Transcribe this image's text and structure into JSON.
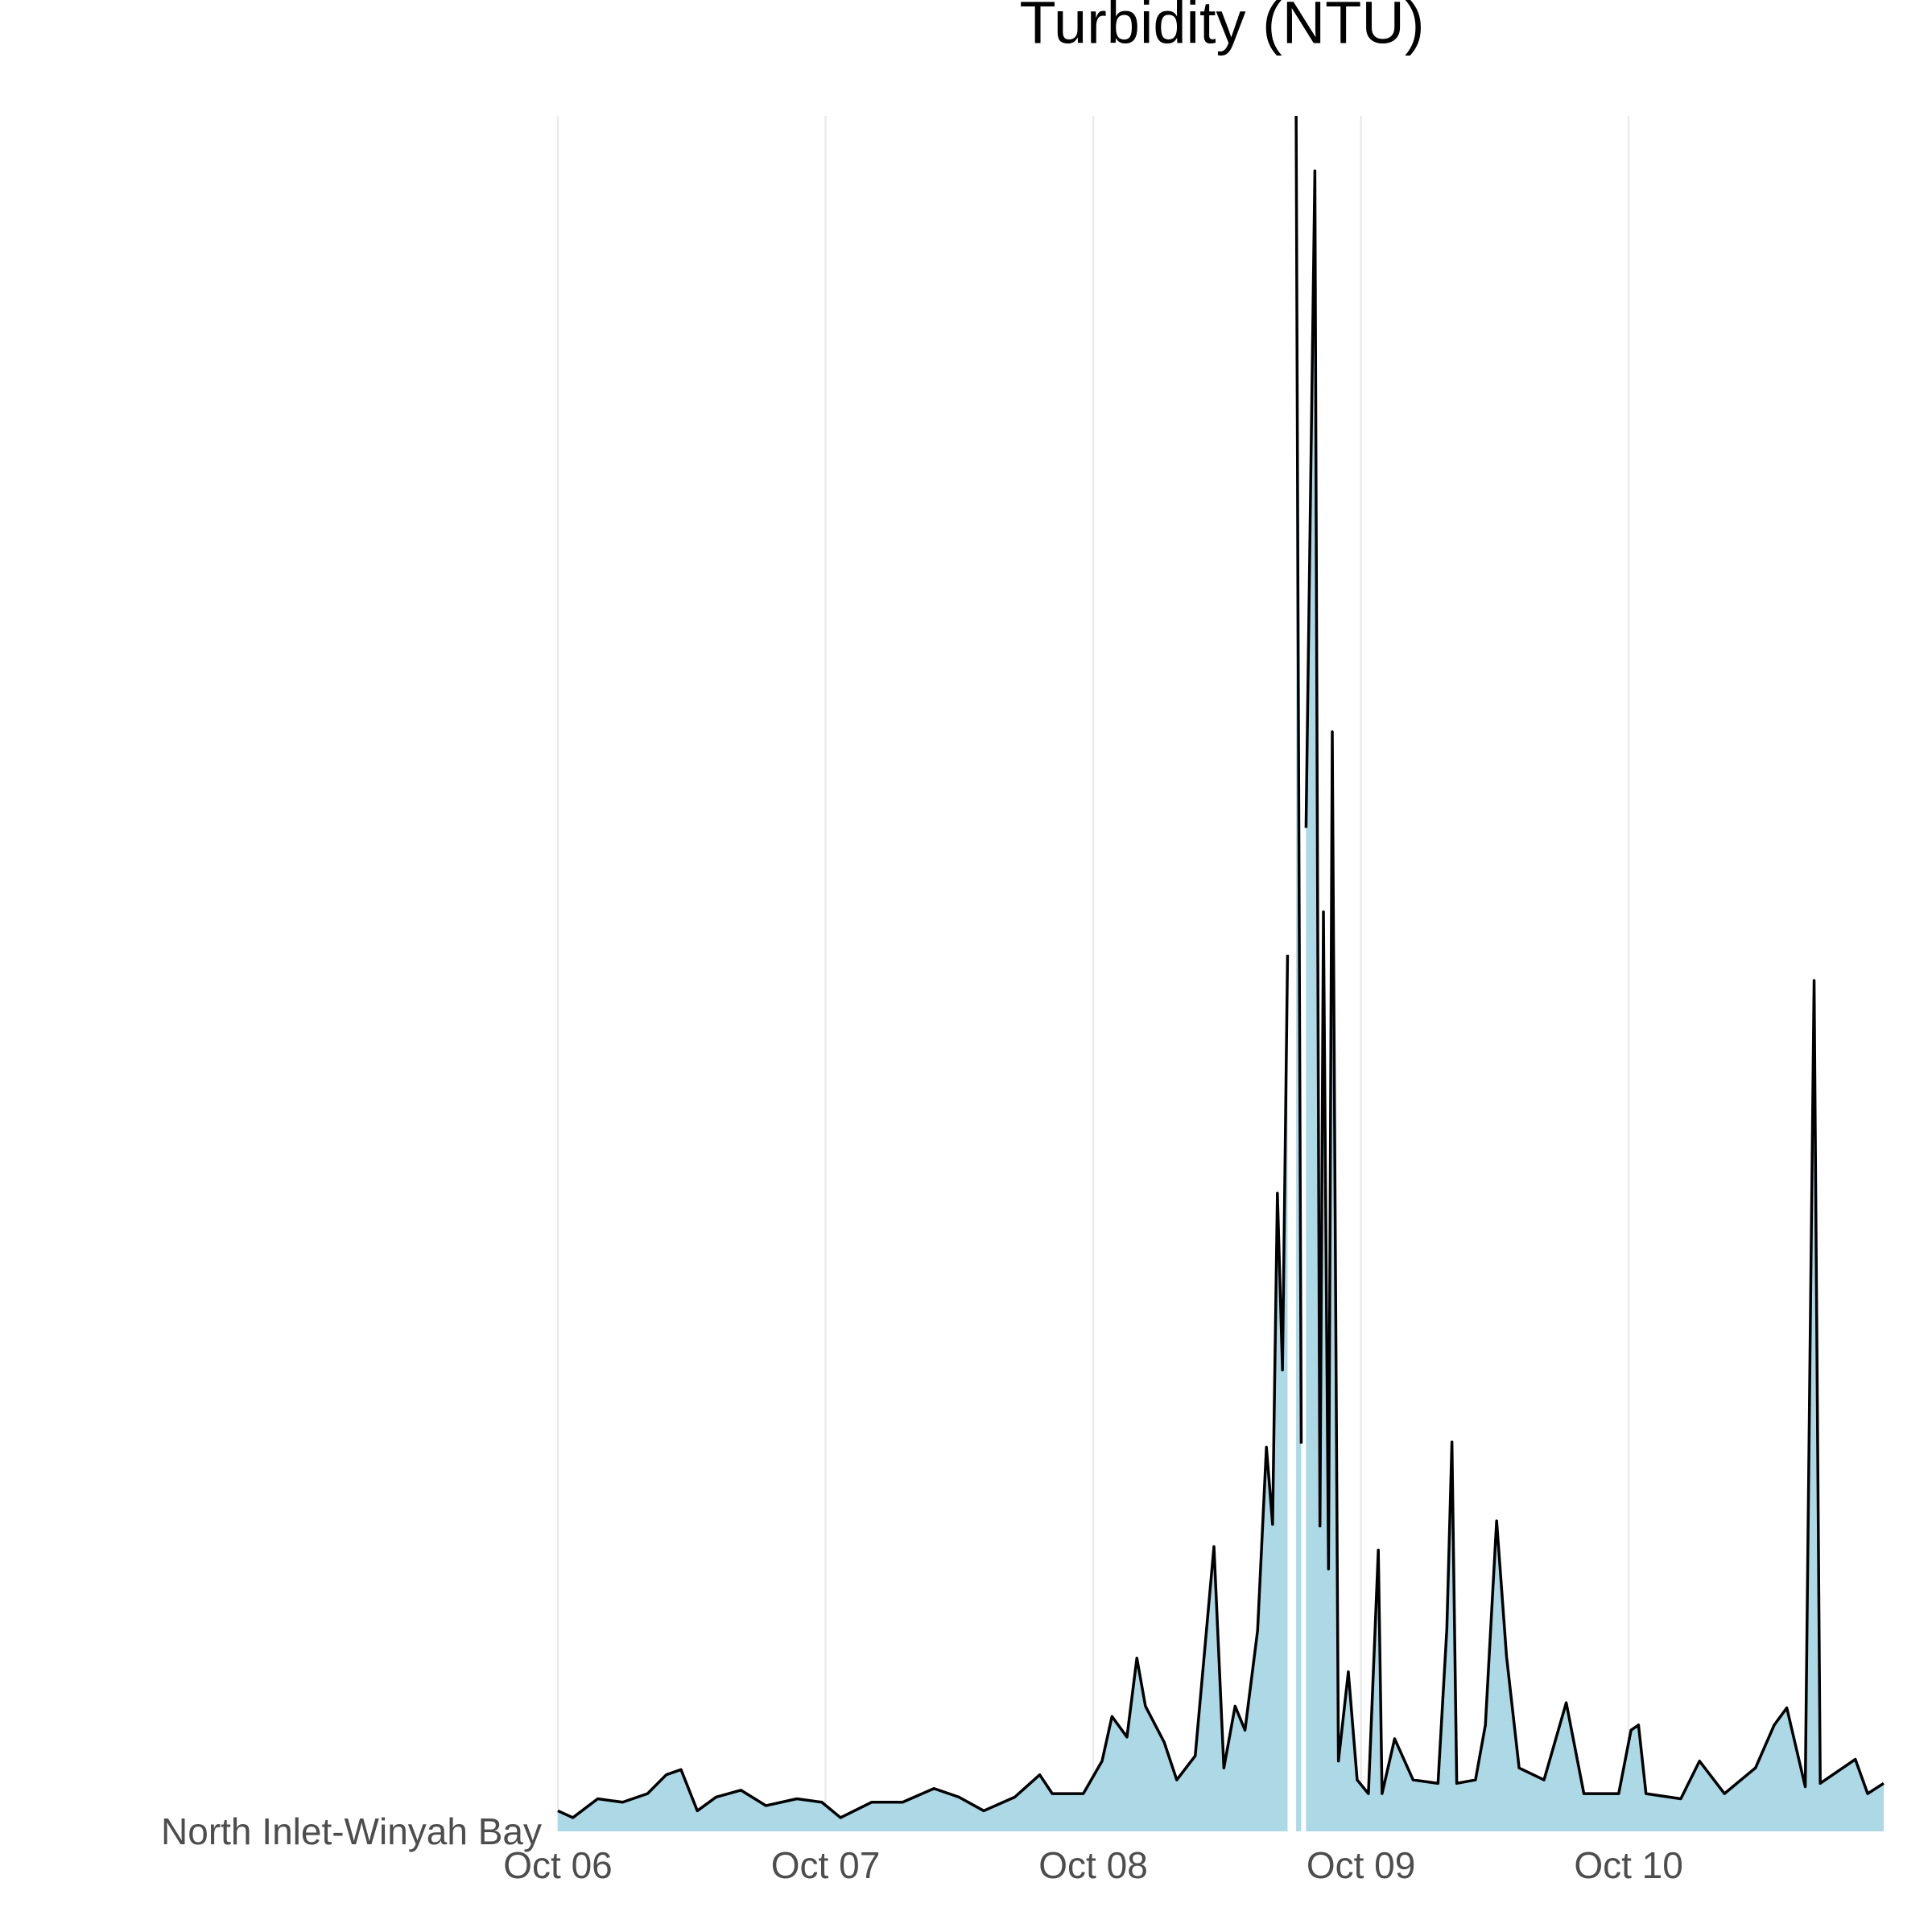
{
  "chart_data": {
    "type": "area",
    "title": "Turbidity (NTU)",
    "x": [
      0,
      0.056,
      0.149,
      0.242,
      0.335,
      0.405,
      0.46,
      0.521,
      0.591,
      0.684,
      0.777,
      0.893,
      0.986,
      1.056,
      1.172,
      1.288,
      1.405,
      1.498,
      1.591,
      1.707,
      1.8,
      1.847,
      1.963,
      2.033,
      2.07,
      2.126,
      2.163,
      2.195,
      2.265,
      2.312,
      2.381,
      2.451,
      2.488,
      2.53,
      2.567,
      2.614,
      2.647,
      2.67,
      2.688,
      2.707,
      2.726,
      2.74,
      2.758,
      2.777,
      2.786,
      2.795,
      2.828,
      2.847,
      2.86,
      2.879,
      2.893,
      2.916,
      2.953,
      2.986,
      3.028,
      3.065,
      3.079,
      3.126,
      3.195,
      3.288,
      3.321,
      3.34,
      3.358,
      3.428,
      3.465,
      3.507,
      3.544,
      3.591,
      3.684,
      3.767,
      3.833,
      3.963,
      4.009,
      4.037,
      4.065,
      4.195,
      4.265,
      4.358,
      4.474,
      4.544,
      4.591,
      4.66,
      4.693,
      4.716,
      4.8,
      4.847,
      4.893,
      4.953
    ],
    "series": [
      {
        "name": "North Inlet-Winyah Bay",
        "color": "#add8e6",
        "line_color": "#000000",
        "values": [
          1.2,
          0.8,
          1.9,
          1.7,
          2.2,
          3.3,
          3.6,
          1.2,
          2.0,
          2.4,
          1.5,
          1.9,
          1.7,
          0.8,
          1.7,
          1.7,
          2.5,
          2.0,
          1.2,
          2.0,
          3.3,
          2.2,
          2.2,
          4.1,
          6.7,
          5.5,
          10.1,
          7.3,
          5.2,
          3.0,
          4.4,
          16.6,
          3.7,
          7.3,
          5.9,
          11.7,
          22.4,
          17.9,
          37.2,
          26.9,
          51.1,
          null,
          100,
          22.6,
          null,
          58.5,
          96.8,
          17.8,
          53.6,
          15.3,
          64.1,
          4.1,
          9.3,
          3.0,
          2.2,
          16.4,
          2.2,
          5.4,
          3.0,
          2.8,
          11.8,
          22.7,
          2.8,
          3.0,
          6.2,
          18.1,
          10.2,
          3.7,
          3.0,
          7.5,
          2.2,
          2.2,
          5.9,
          6.2,
          2.2,
          1.9,
          4.1,
          2.2,
          3.7,
          6.2,
          7.2,
          2.6,
          49.6,
          2.8,
          3.7,
          4.2,
          2.2,
          2.8
        ]
      }
    ],
    "xlim": [
      0,
      4.953
    ],
    "xticks": [
      {
        "value": 0,
        "label": "Oct 06"
      },
      {
        "value": 1,
        "label": "Oct 07"
      },
      {
        "value": 2,
        "label": "Oct 08"
      },
      {
        "value": 3,
        "label": "Oct 09"
      },
      {
        "value": 4,
        "label": "Oct 10"
      }
    ],
    "ylim": [
      0,
      100
    ],
    "grid": true,
    "grid_color": "#ebebeb"
  }
}
